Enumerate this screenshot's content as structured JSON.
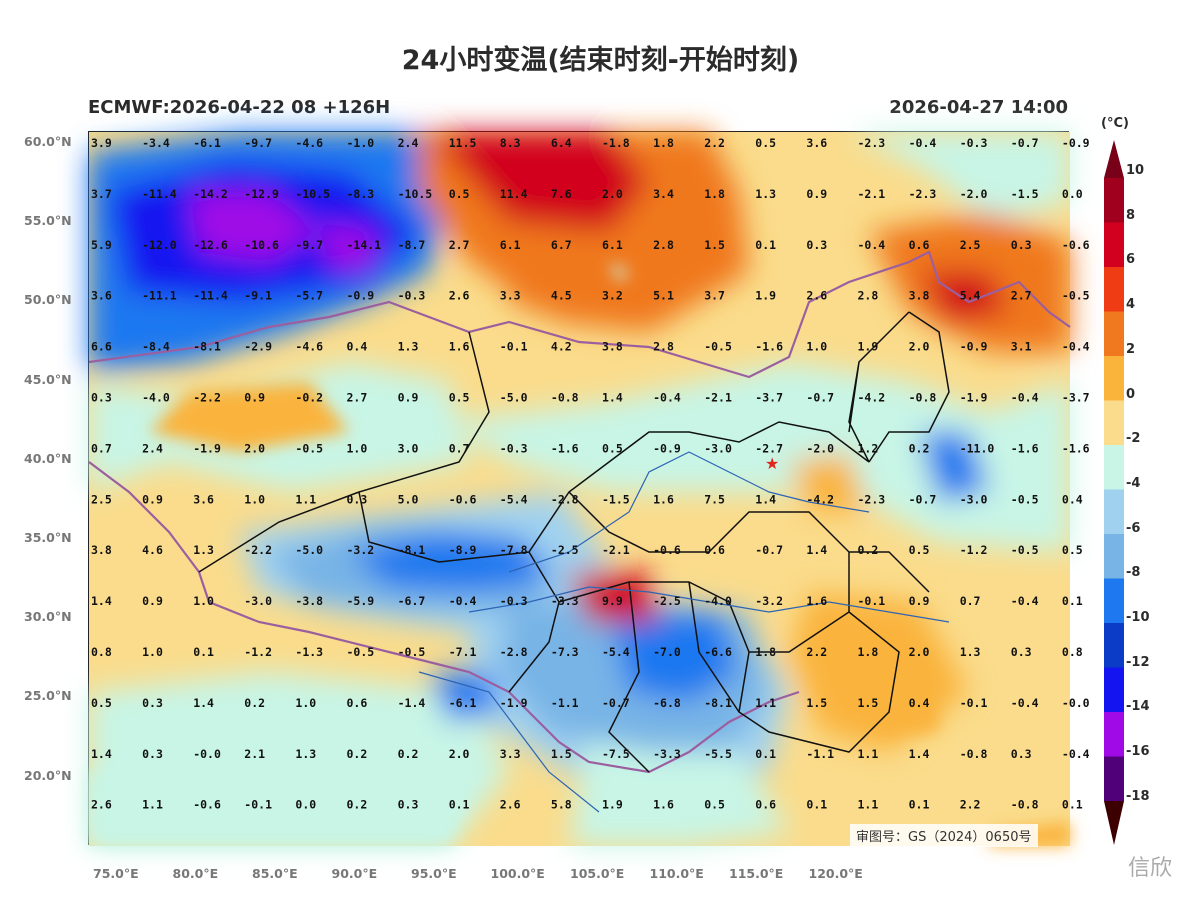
{
  "title": "24小时变温(结束时刻-开始时刻)",
  "model_label": "ECMWF:2026-04-22 08 +126H",
  "valid_time": "2026-04-27 14:00",
  "unit": "(°C)",
  "approval": "审图号：GS（2024）0650号",
  "watermark": "信欣",
  "lat_labels": [
    "60.0°N",
    "55.0°N",
    "50.0°N",
    "45.0°N",
    "40.0°N",
    "35.0°N",
    "30.0°N",
    "25.0°N",
    "20.0°N"
  ],
  "lon_labels": [
    "75.0°E",
    "80.0°E",
    "85.0°E",
    "90.0°E",
    "95.0°E",
    "100.0°E",
    "105.0°E",
    "110.0°E",
    "115.0°E",
    "120.0°E"
  ],
  "colorbar": {
    "labels": [
      "10",
      "8",
      "6",
      "4",
      "2",
      "0",
      "-2",
      "-4",
      "-6",
      "-8",
      "-10",
      "-12",
      "-14",
      "-16",
      "-18"
    ],
    "colors": [
      "#a0001e",
      "#d2001e",
      "#f03c14",
      "#f0781e",
      "#fab43c",
      "#fadc8c",
      "#c8f5e6",
      "#a0d2f0",
      "#78b4e6",
      "#1e78f0",
      "#0a3cc8",
      "#1414f0",
      "#a00ae6",
      "#500078",
      "#780000"
    ]
  },
  "grid_values": [
    [
      "3.9",
      "-3.4",
      "-6.1",
      "-9.7",
      "-4.6",
      "-1.0",
      "2.4",
      "11.5",
      "8.3",
      "6.4",
      "-1.8",
      "1.8",
      "2.2",
      "0.5",
      "3.6",
      "-2.3",
      "-0.4",
      "-0.3",
      "-0.7",
      "-0.9"
    ],
    [
      "3.7",
      "-11.4",
      "-14.2",
      "-12.9",
      "-10.5",
      "-8.3",
      "-10.5",
      "0.5",
      "11.4",
      "7.6",
      "2.0",
      "3.4",
      "1.8",
      "1.3",
      "0.9",
      "-2.1",
      "-2.3",
      "-2.0",
      "-1.5",
      "0.0"
    ],
    [
      "5.9",
      "-12.0",
      "-12.6",
      "-10.6",
      "-9.7",
      "-14.1",
      "-8.7",
      "2.7",
      "6.1",
      "6.7",
      "6.1",
      "2.8",
      "1.5",
      "0.1",
      "0.3",
      "-0.4",
      "0.6",
      "2.5",
      "0.3",
      "-0.6"
    ],
    [
      "3.6",
      "-11.1",
      "-11.4",
      "-9.1",
      "-5.7",
      "-0.9",
      "-0.3",
      "2.6",
      "3.3",
      "4.5",
      "3.2",
      "5.1",
      "3.7",
      "1.9",
      "2.6",
      "2.8",
      "3.8",
      "5.4",
      "2.7",
      "-0.5"
    ],
    [
      "6.6",
      "-8.4",
      "-8.1",
      "-2.9",
      "-4.6",
      "0.4",
      "1.3",
      "1.6",
      "-0.1",
      "4.2",
      "3.8",
      "2.8",
      "-0.5",
      "-1.6",
      "1.0",
      "1.9",
      "2.0",
      "-0.9",
      "3.1",
      "-0.4"
    ],
    [
      "0.3",
      "-4.0",
      "-2.2",
      "0.9",
      "-0.2",
      "2.7",
      "0.9",
      "0.5",
      "-5.0",
      "-0.8",
      "1.4",
      "-0.4",
      "-2.1",
      "-3.7",
      "-0.7",
      "-4.2",
      "-0.8",
      "-1.9",
      "-0.4",
      "-3.7"
    ],
    [
      "0.7",
      "2.4",
      "-1.9",
      "2.0",
      "-0.5",
      "1.0",
      "3.0",
      "0.7",
      "-0.3",
      "-1.6",
      "0.5",
      "-0.9",
      "-3.0",
      "-2.7",
      "-2.0",
      "1.2",
      "0.2",
      "-11.0",
      "-1.6",
      "-1.6"
    ],
    [
      "2.5",
      "0.9",
      "3.6",
      "1.0",
      "1.1",
      "0.3",
      "5.0",
      "-0.6",
      "-5.4",
      "-2.8",
      "-1.5",
      "1.6",
      "7.5",
      "1.4",
      "-4.2",
      "-2.3",
      "-0.7",
      "-3.0",
      "-0.5",
      "0.4"
    ],
    [
      "3.8",
      "4.6",
      "1.3",
      "-2.2",
      "-5.0",
      "-3.2",
      "-8.1",
      "-8.9",
      "-7.8",
      "-2.5",
      "-2.1",
      "-0.6",
      "0.6",
      "-0.7",
      "1.4",
      "0.2",
      "0.5",
      "-1.2",
      "-0.5",
      "0.5"
    ],
    [
      "1.4",
      "0.9",
      "1.0",
      "-3.0",
      "-3.8",
      "-5.9",
      "-6.7",
      "-0.4",
      "-0.3",
      "-3.3",
      "9.9",
      "-2.5",
      "-4.0",
      "-3.2",
      "1.6",
      "-0.1",
      "0.9",
      "0.7",
      "-0.4",
      "0.1"
    ],
    [
      "0.8",
      "1.0",
      "0.1",
      "-1.2",
      "-1.3",
      "-0.5",
      "-0.5",
      "-7.1",
      "-2.8",
      "-7.3",
      "-5.4",
      "-7.0",
      "-6.6",
      "1.8",
      "2.2",
      "1.8",
      "2.0",
      "1.3",
      "0.3",
      "0.8"
    ],
    [
      "0.5",
      "0.3",
      "1.4",
      "0.2",
      "1.0",
      "0.6",
      "-1.4",
      "-6.1",
      "-1.9",
      "-1.1",
      "-0.7",
      "-6.8",
      "-8.1",
      "1.1",
      "1.5",
      "1.5",
      "0.4",
      "-0.1",
      "-0.4",
      "-0.0"
    ],
    [
      "1.4",
      "0.3",
      "-0.0",
      "2.1",
      "1.3",
      "0.2",
      "0.2",
      "2.0",
      "3.3",
      "1.5",
      "-7.5",
      "-3.3",
      "-5.5",
      "0.1",
      "-1.1",
      "1.1",
      "1.4",
      "-0.8",
      "0.3",
      "-0.4"
    ],
    [
      "2.6",
      "1.1",
      "-0.6",
      "-0.1",
      "0.0",
      "0.2",
      "0.3",
      "0.1",
      "2.6",
      "5.8",
      "1.9",
      "1.6",
      "0.5",
      "0.6",
      "0.1",
      "1.1",
      "0.1",
      "2.2",
      "-0.8",
      "0.1"
    ]
  ]
}
